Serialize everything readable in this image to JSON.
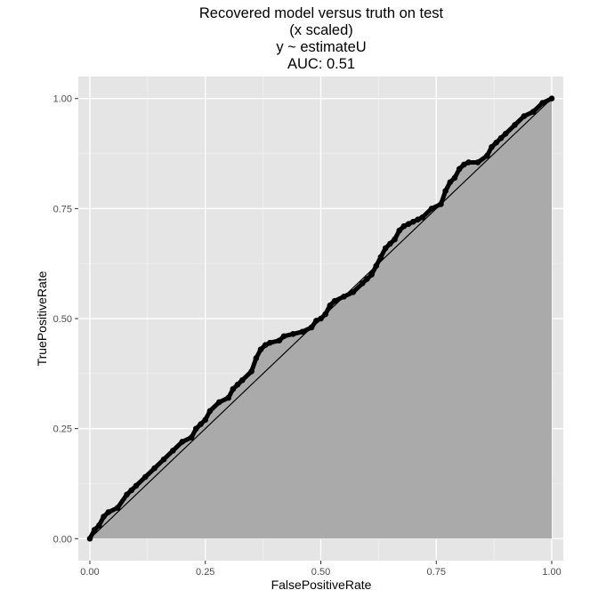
{
  "chart_data": {
    "type": "area",
    "title": [
      "Recovered model versus truth on test",
      "(x scaled)",
      "y ~ estimateU",
      "AUC: 0.51"
    ],
    "xlabel": "FalsePositiveRate",
    "ylabel": "TruePositiveRate",
    "xlim": [
      -0.025,
      1.025
    ],
    "ylim": [
      -0.05,
      1.05
    ],
    "x_ticks": [
      0,
      0.25,
      0.5,
      0.75,
      1
    ],
    "x_tick_labels": [
      "0.00",
      "0.25",
      "0.50",
      "0.75",
      "1.00"
    ],
    "y_ticks": [
      0,
      0.25,
      0.5,
      0.75,
      1
    ],
    "y_tick_labels": [
      "0.00",
      "0.25",
      "0.50",
      "0.75",
      "1.00"
    ],
    "grid": true,
    "area_color": "#aaaaaa",
    "panel_color": "#e5e5e5",
    "curve_color": "#000000",
    "diagonal": {
      "x": [
        0,
        1
      ],
      "y": [
        0,
        1
      ]
    },
    "series": [
      {
        "x": [
          0,
          0.01,
          0.02,
          0.03,
          0.04,
          0.06,
          0.08,
          0.09,
          0.1,
          0.12,
          0.14,
          0.16,
          0.18,
          0.2,
          0.22,
          0.23,
          0.24,
          0.25,
          0.26,
          0.28,
          0.3,
          0.31,
          0.32,
          0.33,
          0.35,
          0.36,
          0.37,
          0.38,
          0.39,
          0.41,
          0.42,
          0.44,
          0.46,
          0.48,
          0.49,
          0.5,
          0.51,
          0.52,
          0.53,
          0.55,
          0.57,
          0.59,
          0.6,
          0.61,
          0.62,
          0.63,
          0.64,
          0.65,
          0.66,
          0.67,
          0.68,
          0.69,
          0.7,
          0.71,
          0.72,
          0.74,
          0.76,
          0.77,
          0.78,
          0.79,
          0.8,
          0.81,
          0.82,
          0.84,
          0.86,
          0.87,
          0.88,
          0.89,
          0.9,
          0.92,
          0.94,
          0.96,
          0.98,
          1.0
        ],
        "y": [
          0,
          0.02,
          0.03,
          0.05,
          0.06,
          0.07,
          0.1,
          0.11,
          0.12,
          0.14,
          0.16,
          0.18,
          0.2,
          0.22,
          0.23,
          0.25,
          0.26,
          0.27,
          0.29,
          0.31,
          0.32,
          0.34,
          0.35,
          0.36,
          0.38,
          0.41,
          0.43,
          0.44,
          0.445,
          0.45,
          0.46,
          0.465,
          0.47,
          0.48,
          0.495,
          0.5,
          0.51,
          0.53,
          0.54,
          0.55,
          0.56,
          0.58,
          0.59,
          0.6,
          0.62,
          0.64,
          0.66,
          0.67,
          0.68,
          0.7,
          0.71,
          0.715,
          0.72,
          0.725,
          0.73,
          0.75,
          0.76,
          0.79,
          0.81,
          0.82,
          0.84,
          0.85,
          0.855,
          0.855,
          0.87,
          0.89,
          0.9,
          0.91,
          0.92,
          0.94,
          0.96,
          0.97,
          0.99,
          1.0
        ]
      }
    ]
  }
}
